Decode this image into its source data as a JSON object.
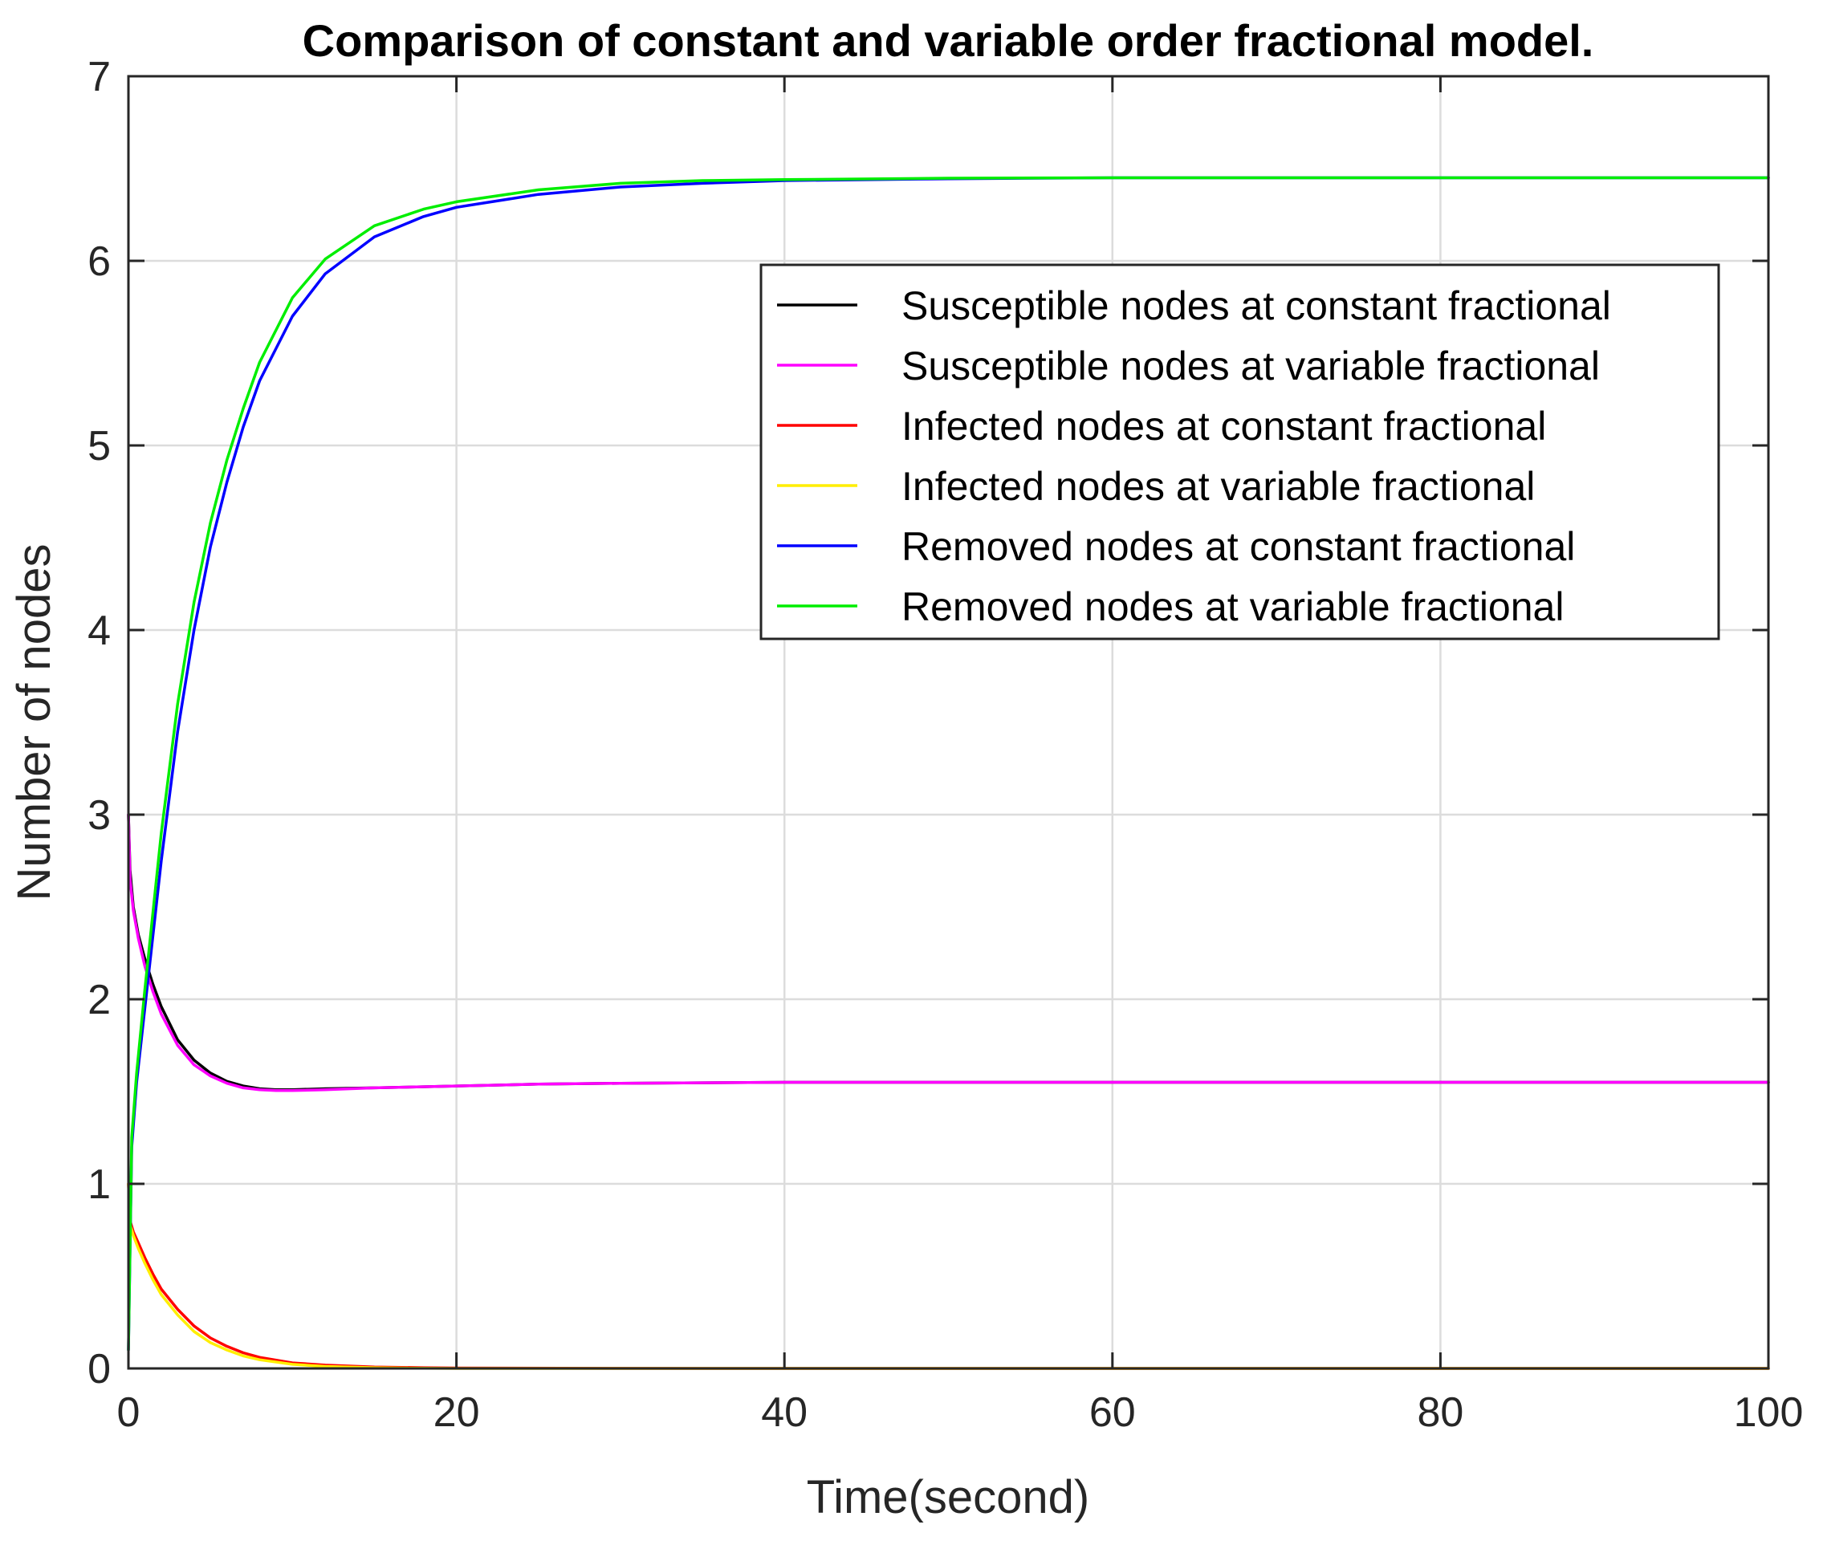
{
  "chart_data": {
    "type": "line",
    "title": "Comparison of constant and variable order fractional model.",
    "xlabel": "Time(second)",
    "ylabel": "Number of nodes",
    "xlim": [
      0,
      100
    ],
    "ylim": [
      0,
      7
    ],
    "xticks": [
      0,
      20,
      40,
      60,
      80,
      100
    ],
    "xtick_labels": [
      "0",
      "20",
      "40",
      "60",
      "80",
      "100"
    ],
    "yticks": [
      0,
      1,
      2,
      3,
      4,
      5,
      6,
      7
    ],
    "ytick_labels": [
      "0",
      "1",
      "2",
      "3",
      "4",
      "5",
      "6",
      "7"
    ],
    "grid": true,
    "legend_position": "top-right",
    "series": [
      {
        "name": "Susceptible nodes at constant fractional",
        "color": "#000000",
        "x": [
          0,
          0.1,
          0.3,
          0.6,
          1,
          1.5,
          2,
          3,
          4,
          5,
          6,
          7,
          8,
          9,
          10,
          12,
          15,
          20,
          25,
          30,
          40,
          50,
          60,
          80,
          100
        ],
        "y": [
          3.0,
          2.7,
          2.5,
          2.35,
          2.22,
          2.08,
          1.96,
          1.78,
          1.67,
          1.6,
          1.555,
          1.53,
          1.515,
          1.51,
          1.51,
          1.515,
          1.52,
          1.53,
          1.54,
          1.545,
          1.55,
          1.55,
          1.55,
          1.55,
          1.55
        ]
      },
      {
        "name": "Susceptible nodes at variable fractional",
        "color": "#ff00ff",
        "x": [
          0,
          0.1,
          0.3,
          0.6,
          1,
          1.5,
          2,
          3,
          4,
          5,
          6,
          7,
          8,
          9,
          10,
          12,
          15,
          20,
          25,
          30,
          40,
          50,
          60,
          80,
          100
        ],
        "y": [
          3.0,
          2.65,
          2.48,
          2.33,
          2.18,
          2.04,
          1.92,
          1.75,
          1.645,
          1.585,
          1.545,
          1.52,
          1.51,
          1.505,
          1.505,
          1.51,
          1.52,
          1.53,
          1.54,
          1.545,
          1.55,
          1.55,
          1.55,
          1.55,
          1.55
        ]
      },
      {
        "name": "Infected nodes at constant fractional",
        "color": "#ff0000",
        "x": [
          0,
          0.1,
          0.3,
          0.6,
          1,
          1.5,
          2,
          3,
          4,
          5,
          6,
          7,
          8,
          10,
          12,
          15,
          18,
          20,
          30,
          40,
          60,
          80,
          100
        ],
        "y": [
          1.0,
          0.8,
          0.74,
          0.68,
          0.6,
          0.51,
          0.43,
          0.32,
          0.23,
          0.165,
          0.12,
          0.085,
          0.06,
          0.03,
          0.018,
          0.008,
          0.004,
          0.002,
          0.0005,
          0.0,
          0.0,
          0.0,
          0.0
        ]
      },
      {
        "name": "Infected nodes at variable fractional",
        "color": "#ffee00",
        "x": [
          0,
          0.1,
          0.3,
          0.6,
          1,
          1.5,
          2,
          3,
          4,
          5,
          6,
          7,
          8,
          10,
          12,
          15,
          18,
          20,
          30,
          40,
          60,
          80,
          100
        ],
        "y": [
          1.0,
          0.78,
          0.72,
          0.65,
          0.57,
          0.48,
          0.4,
          0.29,
          0.2,
          0.14,
          0.1,
          0.068,
          0.047,
          0.022,
          0.011,
          0.004,
          0.001,
          0.0,
          0.0,
          0.0,
          0.0,
          0.0,
          0.0
        ]
      },
      {
        "name": "Removed nodes at constant fractional",
        "color": "#0000ff",
        "x": [
          0,
          0.2,
          0.5,
          1,
          2,
          3,
          4,
          5,
          6,
          7,
          8,
          10,
          12,
          15,
          18,
          20,
          25,
          30,
          35,
          40,
          50,
          60,
          80,
          100
        ],
        "y": [
          0.1,
          1.2,
          1.55,
          1.95,
          2.75,
          3.45,
          4.0,
          4.45,
          4.8,
          5.1,
          5.35,
          5.7,
          5.93,
          6.13,
          6.24,
          6.29,
          6.36,
          6.4,
          6.42,
          6.435,
          6.445,
          6.45,
          6.45,
          6.45
        ]
      },
      {
        "name": "Removed nodes at variable fractional",
        "color": "#00ee00",
        "x": [
          0,
          0.2,
          0.5,
          1,
          2,
          3,
          4,
          5,
          6,
          7,
          8,
          10,
          12,
          15,
          18,
          20,
          25,
          30,
          35,
          40,
          50,
          60,
          80,
          100
        ],
        "y": [
          0.1,
          1.25,
          1.6,
          2.05,
          2.9,
          3.6,
          4.15,
          4.58,
          4.92,
          5.2,
          5.45,
          5.8,
          6.01,
          6.19,
          6.28,
          6.32,
          6.385,
          6.42,
          6.435,
          6.44,
          6.448,
          6.45,
          6.45,
          6.45
        ]
      }
    ]
  }
}
